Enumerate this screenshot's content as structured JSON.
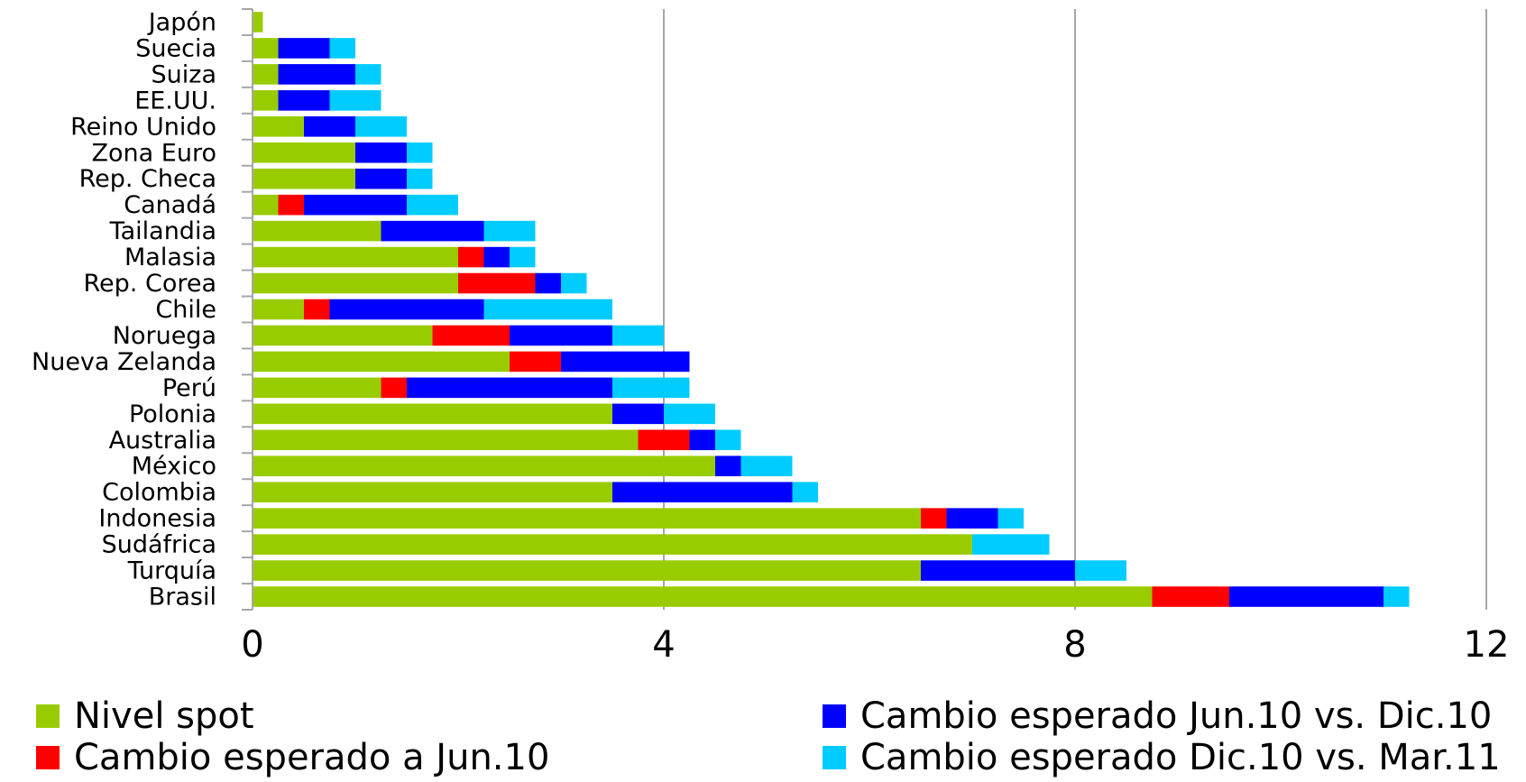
{
  "chart_data": {
    "type": "bar",
    "orientation": "horizontal",
    "stacked": true,
    "categories": [
      "Japón",
      "Suecia",
      "Suiza",
      "EE.UU.",
      "Reino Unido",
      "Zona Euro",
      "Rep. Checa",
      "Canadá",
      "Tailandia",
      "Malasia",
      "Rep. Corea",
      "Chile",
      "Noruega",
      "Nueva Zelanda",
      "Perú",
      "Polonia",
      "Australia",
      "México",
      "Colombia",
      "Indonesia",
      "Sudáfrica",
      "Turquía",
      "Brasil"
    ],
    "series": [
      {
        "name": "Nivel spot",
        "color": "#99cc00",
        "values": [
          0.1,
          0.25,
          0.25,
          0.25,
          0.5,
          1.0,
          1.0,
          0.25,
          1.25,
          2.0,
          2.0,
          0.5,
          1.75,
          2.5,
          1.25,
          3.5,
          3.75,
          4.5,
          3.5,
          6.5,
          7.0,
          6.5,
          8.75
        ]
      },
      {
        "name": "Cambio esperado a Jun.10",
        "color": "#ff0000",
        "values": [
          0,
          0,
          0,
          0,
          0,
          0,
          0,
          0.25,
          0,
          0.25,
          0.75,
          0.25,
          0.75,
          0.5,
          0.25,
          0,
          0.5,
          0,
          0,
          0.25,
          0,
          0,
          0.75
        ]
      },
      {
        "name": "Cambio esperado Jun.10 vs. Dic.10",
        "color": "#0000ff",
        "values": [
          0,
          0.5,
          0.75,
          0.5,
          0.5,
          0.5,
          0.5,
          1.0,
          1.0,
          0.25,
          0.25,
          1.5,
          1.0,
          1.25,
          2.0,
          0.5,
          0.25,
          0.25,
          1.75,
          0.5,
          0,
          1.5,
          1.5
        ]
      },
      {
        "name": "Cambio esperado Dic.10 vs. Mar.11",
        "color": "#00ccff",
        "values": [
          0,
          0.25,
          0.25,
          0.5,
          0.5,
          0.25,
          0.25,
          0.5,
          0.5,
          0.25,
          0.25,
          1.25,
          0.5,
          0,
          0.75,
          0.5,
          0.25,
          0.5,
          0.25,
          0.25,
          0.75,
          0.5,
          0.25
        ]
      }
    ],
    "x_ticks": [
      "0",
      "4",
      "8",
      "12"
    ],
    "xlim": [
      0,
      12
    ],
    "grid": "vertical",
    "legend_position": "bottom",
    "title": "",
    "xlabel": "",
    "ylabel": ""
  }
}
